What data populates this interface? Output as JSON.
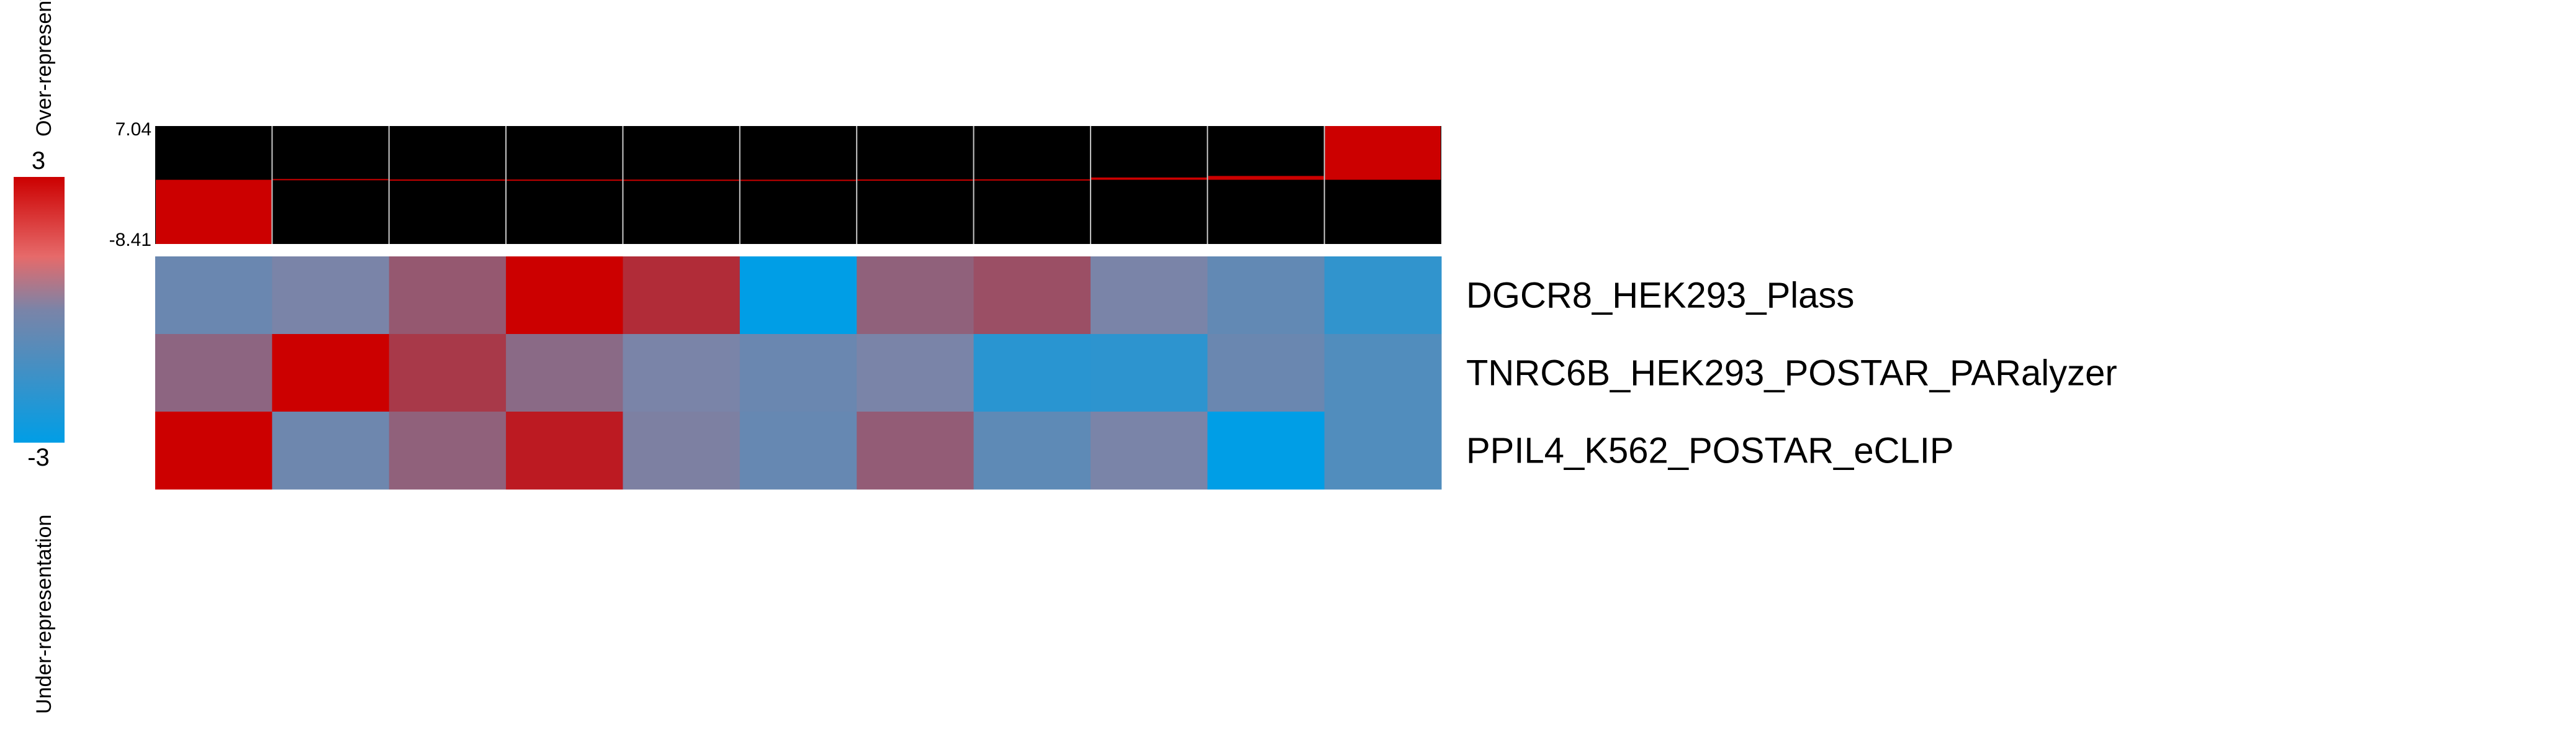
{
  "chart_data": {
    "type": "heatmap",
    "title": "",
    "legend": {
      "max_label": "3",
      "min_label": "-3",
      "top_caption": "Over-representation",
      "bottom_caption": "Under-representation",
      "colors": {
        "high": "#cc0000",
        "mid": "#7a84a8",
        "low": "#009ee6"
      },
      "range": [
        -3,
        3
      ]
    },
    "bar_panel": {
      "ymax_label": "7.04",
      "ymin_label": "-8.41",
      "ylim": [
        -8.41,
        7.04
      ],
      "bar_color": "#cc0000",
      "background": "#000000",
      "values": [
        -8.41,
        0.1,
        0.04,
        0.03,
        0.02,
        0.01,
        0.04,
        0.06,
        0.3,
        0.5,
        7.04
      ]
    },
    "rows": [
      "DGCR8_HEK293_Plass",
      "TNRC6B_HEK293_POSTAR_PARalyzer",
      "PPIL4_K562_POSTAR_eCLIP"
    ],
    "matrix": [
      [
        -0.4,
        0.0,
        1.0,
        3.0,
        2.0,
        -3.0,
        0.8,
        1.2,
        0.0,
        -0.6,
        -1.8
      ],
      [
        0.7,
        3.0,
        1.7,
        0.6,
        0.0,
        -0.4,
        0.0,
        -2.0,
        -1.9,
        -0.4,
        -1.0
      ],
      [
        3.0,
        -0.3,
        0.8,
        2.4,
        0.1,
        -0.5,
        0.9,
        -0.7,
        0.0,
        -3.0,
        -1.0
      ]
    ]
  }
}
